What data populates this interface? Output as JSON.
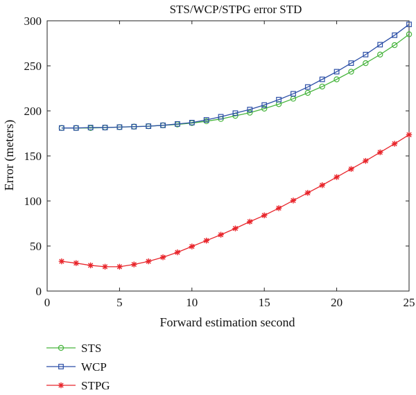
{
  "chart_data": {
    "type": "line",
    "title": "STS/WCP/STPG error STD",
    "xlabel": "Forward estimation second",
    "ylabel": "Error (meters)",
    "xlim": [
      0,
      25
    ],
    "ylim": [
      0,
      300
    ],
    "x_ticks": [
      0,
      5,
      10,
      15,
      20,
      25
    ],
    "y_ticks": [
      0,
      50,
      100,
      150,
      200,
      250,
      300
    ],
    "grid": false,
    "legend_position": "bottom-left, below plot",
    "x": [
      1,
      2,
      3,
      4,
      5,
      6,
      7,
      8,
      9,
      10,
      11,
      12,
      13,
      14,
      15,
      16,
      17,
      18,
      19,
      20,
      21,
      22,
      23,
      24,
      25
    ],
    "series": [
      {
        "name": "STS",
        "color": "#46b43c",
        "marker": "circle",
        "values": [
          181,
          181,
          181,
          181.5,
          182,
          182.5,
          183,
          184,
          185,
          186.5,
          188.5,
          191,
          194.5,
          198,
          202.5,
          207.5,
          213.5,
          220,
          227,
          235,
          243.5,
          253,
          262.5,
          273,
          285
        ]
      },
      {
        "name": "WCP",
        "color": "#2b4ea6",
        "marker": "square",
        "values": [
          181,
          181,
          181.5,
          181.5,
          182,
          182.5,
          183,
          184,
          185.5,
          187,
          190,
          193.5,
          197.5,
          201.5,
          206.5,
          212.5,
          219,
          226.5,
          235,
          243.5,
          253,
          262.5,
          273.5,
          284,
          296
        ]
      },
      {
        "name": "STPG",
        "color": "#e8242a",
        "marker": "asterisk",
        "values": [
          33,
          31,
          28.5,
          27,
          27,
          29.5,
          33,
          37.5,
          43,
          49.5,
          56,
          62.5,
          69.5,
          77,
          84,
          92,
          100.5,
          109,
          117.5,
          126.5,
          135.5,
          144.5,
          154,
          163.5,
          173.5
        ]
      }
    ]
  }
}
